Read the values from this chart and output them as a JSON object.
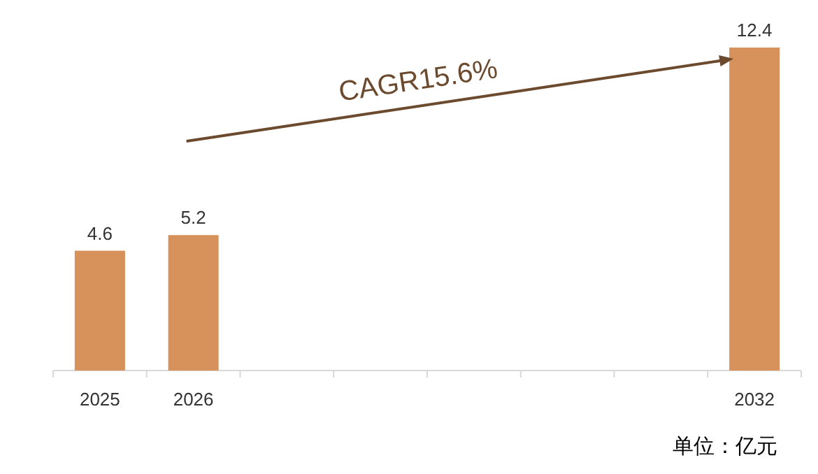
{
  "chart_data": {
    "type": "bar",
    "categories": [
      "2025",
      "2026",
      null,
      null,
      null,
      null,
      null,
      "2032"
    ],
    "values": [
      4.6,
      5.2,
      null,
      null,
      null,
      null,
      null,
      12.4
    ],
    "color": "#d6925a",
    "data_labels": true,
    "annotations": [
      "CAGR15.6%",
      "单位：亿元"
    ]
  }
}
